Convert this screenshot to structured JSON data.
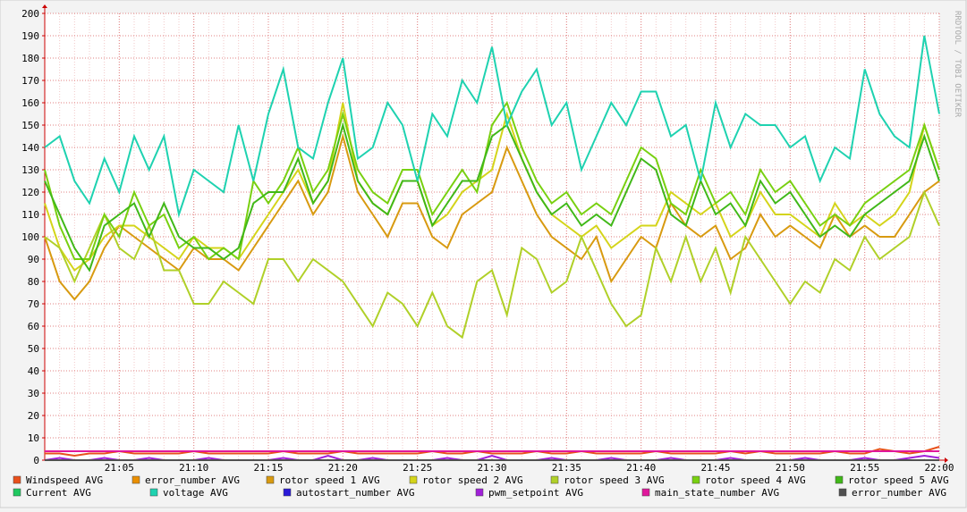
{
  "chart_data": {
    "type": "line",
    "watermark": "RRDTOOL / TOBI OETIKER",
    "x": [
      "21:00",
      "21:01",
      "21:02",
      "21:03",
      "21:04",
      "21:05",
      "21:06",
      "21:07",
      "21:08",
      "21:09",
      "21:10",
      "21:11",
      "21:12",
      "21:13",
      "21:14",
      "21:15",
      "21:16",
      "21:17",
      "21:18",
      "21:19",
      "21:20",
      "21:21",
      "21:22",
      "21:23",
      "21:24",
      "21:25",
      "21:26",
      "21:27",
      "21:28",
      "21:29",
      "21:30",
      "21:31",
      "21:32",
      "21:33",
      "21:34",
      "21:35",
      "21:36",
      "21:37",
      "21:38",
      "21:39",
      "21:40",
      "21:41",
      "21:42",
      "21:43",
      "21:44",
      "21:45",
      "21:46",
      "21:47",
      "21:48",
      "21:49",
      "21:50",
      "21:51",
      "21:52",
      "21:53",
      "21:54",
      "21:55",
      "21:56",
      "21:57",
      "21:58",
      "21:59",
      "22:00"
    ],
    "xlim": [
      "21:00",
      "22:00"
    ],
    "xticks": [
      "21:05",
      "21:10",
      "21:15",
      "21:20",
      "21:25",
      "21:30",
      "21:35",
      "21:40",
      "21:45",
      "21:50",
      "21:55",
      "22:00"
    ],
    "ylim": [
      0,
      200
    ],
    "yticks": [
      0,
      10,
      20,
      30,
      40,
      50,
      60,
      70,
      80,
      90,
      100,
      110,
      120,
      130,
      140,
      150,
      160,
      170,
      180,
      190,
      200
    ],
    "grid": true,
    "series": [
      {
        "name": "Windspeed AVG",
        "color": "#e8501c",
        "values": [
          3,
          3,
          2,
          3,
          3,
          4,
          3,
          3,
          3,
          3,
          4,
          3,
          3,
          3,
          3,
          3,
          4,
          3,
          3,
          3,
          4,
          3,
          3,
          3,
          3,
          3,
          4,
          3,
          3,
          4,
          3,
          3,
          3,
          4,
          3,
          3,
          4,
          3,
          3,
          3,
          3,
          4,
          3,
          3,
          3,
          3,
          4,
          3,
          4,
          3,
          3,
          3,
          3,
          4,
          3,
          3,
          5,
          4,
          3,
          4,
          6
        ]
      },
      {
        "name": "error_number AVG",
        "color": "#ea8f00",
        "values": [
          0,
          0,
          0,
          0,
          0,
          0,
          0,
          0,
          0,
          0,
          0,
          0,
          0,
          0,
          0,
          0,
          0,
          0,
          0,
          0,
          0,
          0,
          0,
          0,
          0,
          0,
          0,
          0,
          0,
          0,
          0,
          0,
          0,
          0,
          0,
          0,
          0,
          0,
          0,
          0,
          0,
          0,
          0,
          0,
          0,
          0,
          0,
          0,
          0,
          0,
          0,
          0,
          0,
          0,
          0,
          0,
          0,
          0,
          0,
          0,
          0
        ]
      },
      {
        "name": "rotor speed 1 AVG",
        "color": "#d89a10",
        "values": [
          100,
          80,
          72,
          80,
          95,
          105,
          100,
          95,
          90,
          85,
          95,
          90,
          90,
          85,
          95,
          105,
          115,
          125,
          110,
          120,
          145,
          120,
          110,
          100,
          115,
          115,
          100,
          95,
          110,
          115,
          120,
          140,
          125,
          110,
          100,
          95,
          90,
          100,
          80,
          90,
          100,
          95,
          115,
          105,
          100,
          105,
          90,
          95,
          110,
          100,
          105,
          100,
          95,
          110,
          100,
          105,
          100,
          100,
          110,
          120,
          125
        ]
      },
      {
        "name": "rotor speed 2 AVG",
        "color": "#d4d41a",
        "values": [
          115,
          95,
          85,
          90,
          100,
          105,
          105,
          100,
          95,
          90,
          100,
          95,
          95,
          90,
          100,
          110,
          120,
          130,
          115,
          125,
          160,
          125,
          115,
          110,
          125,
          125,
          105,
          110,
          120,
          125,
          130,
          155,
          135,
          120,
          110,
          105,
          100,
          105,
          95,
          100,
          105,
          105,
          120,
          115,
          110,
          115,
          100,
          105,
          120,
          110,
          110,
          105,
          100,
          115,
          105,
          110,
          105,
          110,
          120,
          150,
          130
        ]
      },
      {
        "name": "rotor speed 3 AVG",
        "color": "#b0d028",
        "values": [
          100,
          95,
          80,
          95,
          110,
          95,
          90,
          105,
          85,
          85,
          70,
          70,
          80,
          75,
          70,
          90,
          90,
          80,
          90,
          85,
          80,
          70,
          60,
          75,
          70,
          60,
          75,
          60,
          55,
          80,
          85,
          65,
          95,
          90,
          75,
          80,
          100,
          85,
          70,
          60,
          65,
          95,
          80,
          100,
          80,
          95,
          75,
          100,
          90,
          80,
          70,
          80,
          75,
          90,
          85,
          100,
          90,
          95,
          100,
          120,
          105
        ]
      },
      {
        "name": "rotor speed 4 AVG",
        "color": "#78d010",
        "values": [
          130,
          105,
          90,
          90,
          110,
          100,
          120,
          105,
          110,
          95,
          100,
          90,
          95,
          90,
          125,
          115,
          125,
          140,
          120,
          130,
          155,
          130,
          120,
          115,
          130,
          130,
          110,
          120,
          130,
          120,
          150,
          160,
          140,
          125,
          115,
          120,
          110,
          115,
          110,
          125,
          140,
          135,
          115,
          110,
          130,
          115,
          120,
          110,
          130,
          120,
          125,
          115,
          105,
          110,
          105,
          115,
          120,
          125,
          130,
          150,
          130
        ]
      },
      {
        "name": "rotor speed 5 AVG",
        "color": "#40b818",
        "values": [
          125,
          110,
          95,
          85,
          105,
          110,
          115,
          100,
          115,
          100,
          95,
          95,
          90,
          95,
          115,
          120,
          120,
          135,
          115,
          125,
          150,
          125,
          115,
          110,
          125,
          125,
          105,
          115,
          125,
          125,
          145,
          150,
          135,
          120,
          110,
          115,
          105,
          110,
          105,
          120,
          135,
          130,
          110,
          105,
          125,
          110,
          115,
          105,
          125,
          115,
          120,
          110,
          100,
          105,
          100,
          110,
          115,
          120,
          125,
          145,
          125
        ]
      },
      {
        "name": "Current AVG",
        "color": "#20c860",
        "values": [
          0,
          0,
          0,
          0,
          0,
          0,
          0,
          0,
          0,
          0,
          0,
          0,
          0,
          0,
          0,
          0,
          0,
          0,
          0,
          0,
          0,
          0,
          0,
          0,
          0,
          0,
          0,
          0,
          0,
          0,
          0,
          0,
          0,
          0,
          0,
          0,
          0,
          0,
          0,
          0,
          0,
          0,
          0,
          0,
          0,
          0,
          0,
          0,
          0,
          0,
          0,
          0,
          0,
          0,
          0,
          0,
          0,
          0,
          0,
          0,
          0
        ]
      },
      {
        "name": "voltage AVG",
        "color": "#1ed2b0",
        "values": [
          140,
          145,
          125,
          115,
          135,
          120,
          145,
          130,
          145,
          110,
          130,
          125,
          120,
          150,
          125,
          155,
          175,
          140,
          135,
          160,
          180,
          135,
          140,
          160,
          150,
          125,
          155,
          145,
          170,
          160,
          185,
          150,
          165,
          175,
          150,
          160,
          130,
          145,
          160,
          150,
          165,
          165,
          145,
          150,
          125,
          160,
          140,
          155,
          150,
          150,
          140,
          145,
          125,
          140,
          135,
          175,
          155,
          145,
          140,
          190,
          155
        ]
      },
      {
        "name": "autostart_number AVG",
        "color": "#2a1ad8",
        "values": [
          0,
          0,
          0,
          0,
          0,
          0,
          0,
          0,
          0,
          0,
          0,
          0,
          0,
          0,
          0,
          0,
          0,
          0,
          0,
          0,
          0,
          0,
          0,
          0,
          0,
          0,
          0,
          0,
          0,
          0,
          0,
          0,
          0,
          0,
          0,
          0,
          0,
          0,
          0,
          0,
          0,
          0,
          0,
          0,
          0,
          0,
          0,
          0,
          0,
          0,
          0,
          0,
          0,
          0,
          0,
          0,
          0,
          0,
          0,
          0,
          0
        ]
      },
      {
        "name": "pwm_setpoint AVG",
        "color": "#a020d8",
        "values": [
          0,
          1,
          0,
          0,
          1,
          0,
          0,
          1,
          0,
          0,
          0,
          1,
          0,
          0,
          0,
          0,
          1,
          0,
          0,
          2,
          0,
          0,
          1,
          0,
          0,
          0,
          0,
          1,
          0,
          0,
          2,
          0,
          0,
          0,
          1,
          0,
          0,
          0,
          1,
          0,
          0,
          0,
          1,
          0,
          0,
          0,
          1,
          0,
          0,
          0,
          0,
          1,
          0,
          0,
          0,
          1,
          0,
          0,
          1,
          2,
          1
        ]
      },
      {
        "name": "main_state_number AVG",
        "color": "#e0189c",
        "values": [
          4,
          4,
          4,
          4,
          4,
          4,
          4,
          4,
          4,
          4,
          4,
          4,
          4,
          4,
          4,
          4,
          4,
          4,
          4,
          4,
          4,
          4,
          4,
          4,
          4,
          4,
          4,
          4,
          4,
          4,
          4,
          4,
          4,
          4,
          4,
          4,
          4,
          4,
          4,
          4,
          4,
          4,
          4,
          4,
          4,
          4,
          4,
          4,
          4,
          4,
          4,
          4,
          4,
          4,
          4,
          4,
          4,
          4,
          4,
          4,
          4
        ]
      },
      {
        "name": "error_number AVG",
        "color": "#505050",
        "values": [
          0,
          0,
          0,
          0,
          0,
          0,
          0,
          0,
          0,
          0,
          0,
          0,
          0,
          0,
          0,
          0,
          0,
          0,
          0,
          0,
          0,
          0,
          0,
          0,
          0,
          0,
          0,
          0,
          0,
          0,
          0,
          0,
          0,
          0,
          0,
          0,
          0,
          0,
          0,
          0,
          0,
          0,
          0,
          0,
          0,
          0,
          0,
          0,
          0,
          0,
          0,
          0,
          0,
          0,
          0,
          0,
          0,
          0,
          0,
          0,
          0
        ]
      }
    ]
  }
}
